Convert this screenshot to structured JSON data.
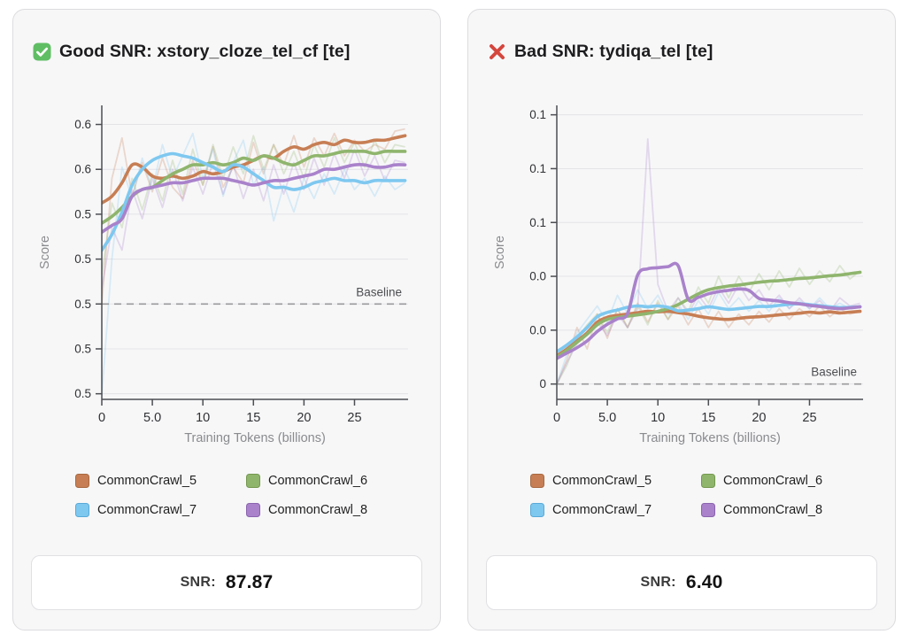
{
  "cards": [
    {
      "icon": "check-emoji",
      "title": "Good SNR: xstory_cloze_tel_cf [te]",
      "snr_label": "SNR:",
      "snr_value": "87.87"
    },
    {
      "icon": "cross-emoji",
      "title": "Bad SNR: tydiqa_tel [te]",
      "snr_label": "SNR:",
      "snr_value": "6.40"
    }
  ],
  "icon_colors": {
    "check_green": "#5fbe63",
    "cross_red": "#d5463d"
  },
  "chart_data": [
    {
      "type": "line",
      "title": "Good SNR: xstory_cloze_tel_cf [te]",
      "xlabel": "Training Tokens (billions)",
      "ylabel": "Score",
      "x_range": [
        0,
        30.3
      ],
      "y_range": [
        0.4575,
        0.5885
      ],
      "xticks": [
        {
          "v": 0,
          "label": "0"
        },
        {
          "v": 5,
          "label": "5.0"
        },
        {
          "v": 10,
          "label": "10"
        },
        {
          "v": 15,
          "label": "15"
        },
        {
          "v": 20,
          "label": "20"
        },
        {
          "v": 25,
          "label": "25"
        }
      ],
      "yticks": [
        {
          "v": 0.58,
          "label": "0.6"
        },
        {
          "v": 0.56,
          "label": "0.6"
        },
        {
          "v": 0.54,
          "label": "0.5"
        },
        {
          "v": 0.52,
          "label": "0.5"
        },
        {
          "v": 0.5,
          "label": "0.5"
        },
        {
          "v": 0.48,
          "label": "0.5"
        },
        {
          "v": 0.46,
          "label": "0.5"
        }
      ],
      "baseline": {
        "value": 0.5,
        "label": "Baseline"
      },
      "x": [
        0,
        1,
        2,
        3,
        4,
        5,
        6,
        7,
        8,
        9,
        10,
        11,
        12,
        13,
        14,
        15,
        16,
        17,
        18,
        19,
        20,
        21,
        22,
        23,
        24,
        25,
        26,
        27,
        28,
        29,
        30
      ],
      "series": [
        {
          "name": "CommonCrawl_5",
          "color": "#c77e54",
          "border": "#a8683f",
          "smoothed": [
            0.545,
            0.548,
            0.554,
            0.562,
            0.561,
            0.557,
            0.556,
            0.557,
            0.556,
            0.557,
            0.559,
            0.558,
            0.559,
            0.561,
            0.562,
            0.564,
            0.566,
            0.565,
            0.568,
            0.57,
            0.569,
            0.571,
            0.572,
            0.571,
            0.573,
            0.572,
            0.572,
            0.573,
            0.573,
            0.574,
            0.575
          ],
          "raw": [
            0.5,
            0.556,
            0.574,
            0.548,
            0.563,
            0.55,
            0.565,
            0.552,
            0.547,
            0.564,
            0.553,
            0.57,
            0.552,
            0.561,
            0.554,
            0.572,
            0.558,
            0.571,
            0.562,
            0.575,
            0.561,
            0.574,
            0.566,
            0.576,
            0.566,
            0.573,
            0.568,
            0.571,
            0.569,
            0.577,
            0.578
          ]
        },
        {
          "name": "CommonCrawl_6",
          "color": "#8fb56d",
          "border": "#74984f",
          "smoothed": [
            0.536,
            0.539,
            0.543,
            0.548,
            0.551,
            0.552,
            0.555,
            0.558,
            0.56,
            0.562,
            0.562,
            0.563,
            0.562,
            0.563,
            0.565,
            0.564,
            0.566,
            0.565,
            0.563,
            0.562,
            0.564,
            0.566,
            0.566,
            0.567,
            0.568,
            0.568,
            0.568,
            0.567,
            0.568,
            0.568,
            0.568
          ],
          "raw": [
            0.513,
            0.545,
            0.534,
            0.556,
            0.542,
            0.558,
            0.546,
            0.564,
            0.549,
            0.569,
            0.553,
            0.571,
            0.556,
            0.57,
            0.558,
            0.575,
            0.56,
            0.571,
            0.558,
            0.568,
            0.556,
            0.571,
            0.561,
            0.574,
            0.563,
            0.572,
            0.561,
            0.573,
            0.563,
            0.571,
            0.57
          ]
        },
        {
          "name": "CommonCrawl_7",
          "color": "#7ec8f0",
          "border": "#58a9d7",
          "smoothed": [
            0.524,
            0.531,
            0.541,
            0.553,
            0.56,
            0.564,
            0.566,
            0.567,
            0.566,
            0.565,
            0.563,
            0.561,
            0.559,
            0.562,
            0.561,
            0.558,
            0.555,
            0.552,
            0.552,
            0.551,
            0.552,
            0.554,
            0.555,
            0.556,
            0.555,
            0.555,
            0.554,
            0.555,
            0.555,
            0.555,
            0.555
          ],
          "raw": [
            0.459,
            0.52,
            0.561,
            0.547,
            0.565,
            0.551,
            0.571,
            0.556,
            0.566,
            0.576,
            0.556,
            0.569,
            0.548,
            0.563,
            0.573,
            0.553,
            0.561,
            0.537,
            0.553,
            0.541,
            0.556,
            0.547,
            0.558,
            0.549,
            0.56,
            0.551,
            0.556,
            0.548,
            0.557,
            0.551,
            0.554
          ]
        },
        {
          "name": "CommonCrawl_8",
          "color": "#a982cb",
          "border": "#8b64ae",
          "smoothed": [
            0.532,
            0.535,
            0.538,
            0.548,
            0.551,
            0.552,
            0.553,
            0.554,
            0.554,
            0.555,
            0.556,
            0.556,
            0.556,
            0.555,
            0.554,
            0.553,
            0.554,
            0.555,
            0.555,
            0.556,
            0.557,
            0.558,
            0.56,
            0.56,
            0.561,
            0.562,
            0.562,
            0.561,
            0.561,
            0.562,
            0.562
          ],
          "raw": [
            0.507,
            0.534,
            0.524,
            0.551,
            0.538,
            0.556,
            0.543,
            0.56,
            0.546,
            0.561,
            0.549,
            0.563,
            0.549,
            0.562,
            0.547,
            0.56,
            0.546,
            0.562,
            0.549,
            0.563,
            0.551,
            0.565,
            0.553,
            0.567,
            0.556,
            0.569,
            0.557,
            0.566,
            0.555,
            0.564,
            0.563
          ]
        }
      ]
    },
    {
      "type": "line",
      "title": "Bad SNR: tydiqa_tel [te]",
      "xlabel": "Training Tokens (billions)",
      "ylabel": "Score",
      "x_range": [
        0,
        30.3
      ],
      "y_range": [
        -0.0057,
        0.1035
      ],
      "xticks": [
        {
          "v": 0,
          "label": "0"
        },
        {
          "v": 5,
          "label": "5.0"
        },
        {
          "v": 10,
          "label": "10"
        },
        {
          "v": 15,
          "label": "15"
        },
        {
          "v": 20,
          "label": "20"
        },
        {
          "v": 25,
          "label": "25"
        }
      ],
      "yticks": [
        {
          "v": 0.1,
          "label": "0.1"
        },
        {
          "v": 0.08,
          "label": "0.1"
        },
        {
          "v": 0.06,
          "label": "0.1"
        },
        {
          "v": 0.04,
          "label": "0.0"
        },
        {
          "v": 0.02,
          "label": "0.0"
        },
        {
          "v": 0.0,
          "label": "0"
        }
      ],
      "baseline": {
        "value": 0.0,
        "label": "Baseline"
      },
      "x": [
        0,
        1,
        2,
        3,
        4,
        5,
        6,
        7,
        8,
        9,
        10,
        11,
        12,
        13,
        14,
        15,
        16,
        17,
        18,
        19,
        20,
        21,
        22,
        23,
        24,
        25,
        26,
        27,
        28,
        29,
        30
      ],
      "series": [
        {
          "name": "CommonCrawl_5",
          "color": "#c77e54",
          "border": "#a8683f",
          "smoothed": [
            0.0105,
            0.013,
            0.016,
            0.019,
            0.023,
            0.0248,
            0.0255,
            0.026,
            0.0265,
            0.027,
            0.0268,
            0.027,
            0.0265,
            0.026,
            0.0252,
            0.0246,
            0.0242,
            0.024,
            0.0244,
            0.0248,
            0.025,
            0.0253,
            0.0257,
            0.026,
            0.0263,
            0.0267,
            0.0264,
            0.0268,
            0.0264,
            0.0267,
            0.027
          ],
          "raw": [
            0.0,
            0.009,
            0.021,
            0.013,
            0.026,
            0.017,
            0.028,
            0.021,
            0.03,
            0.023,
            0.03,
            0.024,
            0.029,
            0.022,
            0.028,
            0.021,
            0.027,
            0.021,
            0.026,
            0.022,
            0.027,
            0.023,
            0.028,
            0.024,
            0.028,
            0.025,
            0.029,
            0.025,
            0.028,
            0.026,
            0.027
          ]
        },
        {
          "name": "CommonCrawl_6",
          "color": "#8fb56d",
          "border": "#74984f",
          "smoothed": [
            0.01,
            0.0125,
            0.0155,
            0.0185,
            0.022,
            0.024,
            0.0247,
            0.0252,
            0.0257,
            0.0262,
            0.027,
            0.028,
            0.0295,
            0.0315,
            0.0335,
            0.035,
            0.0358,
            0.0364,
            0.0368,
            0.0373,
            0.0378,
            0.0382,
            0.0384,
            0.0388,
            0.0392,
            0.0394,
            0.0398,
            0.0402,
            0.0405,
            0.041,
            0.0415
          ],
          "raw": [
            0.0,
            0.007,
            0.017,
            0.022,
            0.026,
            0.019,
            0.028,
            0.021,
            0.029,
            0.022,
            0.031,
            0.024,
            0.032,
            0.027,
            0.036,
            0.03,
            0.04,
            0.032,
            0.04,
            0.034,
            0.041,
            0.035,
            0.042,
            0.036,
            0.043,
            0.037,
            0.042,
            0.038,
            0.044,
            0.039,
            0.042
          ]
        },
        {
          "name": "CommonCrawl_7",
          "color": "#7ec8f0",
          "border": "#58a9d7",
          "smoothed": [
            0.012,
            0.0145,
            0.0175,
            0.021,
            0.025,
            0.0266,
            0.0275,
            0.0285,
            0.029,
            0.0287,
            0.029,
            0.0285,
            0.0272,
            0.0275,
            0.028,
            0.0287,
            0.0282,
            0.0277,
            0.028,
            0.0284,
            0.0288,
            0.0288,
            0.0292,
            0.0296,
            0.0298,
            0.0295,
            0.0291,
            0.0287,
            0.0284,
            0.0285,
            0.0287
          ],
          "raw": [
            0.0,
            0.011,
            0.019,
            0.024,
            0.029,
            0.023,
            0.033,
            0.026,
            0.035,
            0.028,
            0.033,
            0.026,
            0.03,
            0.024,
            0.031,
            0.026,
            0.034,
            0.028,
            0.032,
            0.027,
            0.031,
            0.027,
            0.032,
            0.028,
            0.031,
            0.028,
            0.032,
            0.028,
            0.03,
            0.028,
            0.029
          ]
        },
        {
          "name": "CommonCrawl_8",
          "color": "#a982cb",
          "border": "#8b64ae",
          "smoothed": [
            0.0095,
            0.0115,
            0.0135,
            0.016,
            0.0195,
            0.0222,
            0.0242,
            0.0262,
            0.0405,
            0.0428,
            0.0432,
            0.0436,
            0.044,
            0.0315,
            0.0322,
            0.0335,
            0.0343,
            0.0348,
            0.0353,
            0.0348,
            0.0318,
            0.0312,
            0.0308,
            0.0302,
            0.0298,
            0.0292,
            0.0288,
            0.0283,
            0.028,
            0.0283,
            0.0287
          ],
          "raw": [
            0.0,
            0.008,
            0.015,
            0.019,
            0.023,
            0.018,
            0.026,
            0.021,
            0.028,
            0.091,
            0.037,
            0.027,
            0.032,
            0.026,
            0.033,
            0.028,
            0.036,
            0.03,
            0.037,
            0.031,
            0.035,
            0.029,
            0.033,
            0.028,
            0.032,
            0.028,
            0.031,
            0.027,
            0.032,
            0.029,
            0.03
          ]
        }
      ]
    }
  ]
}
